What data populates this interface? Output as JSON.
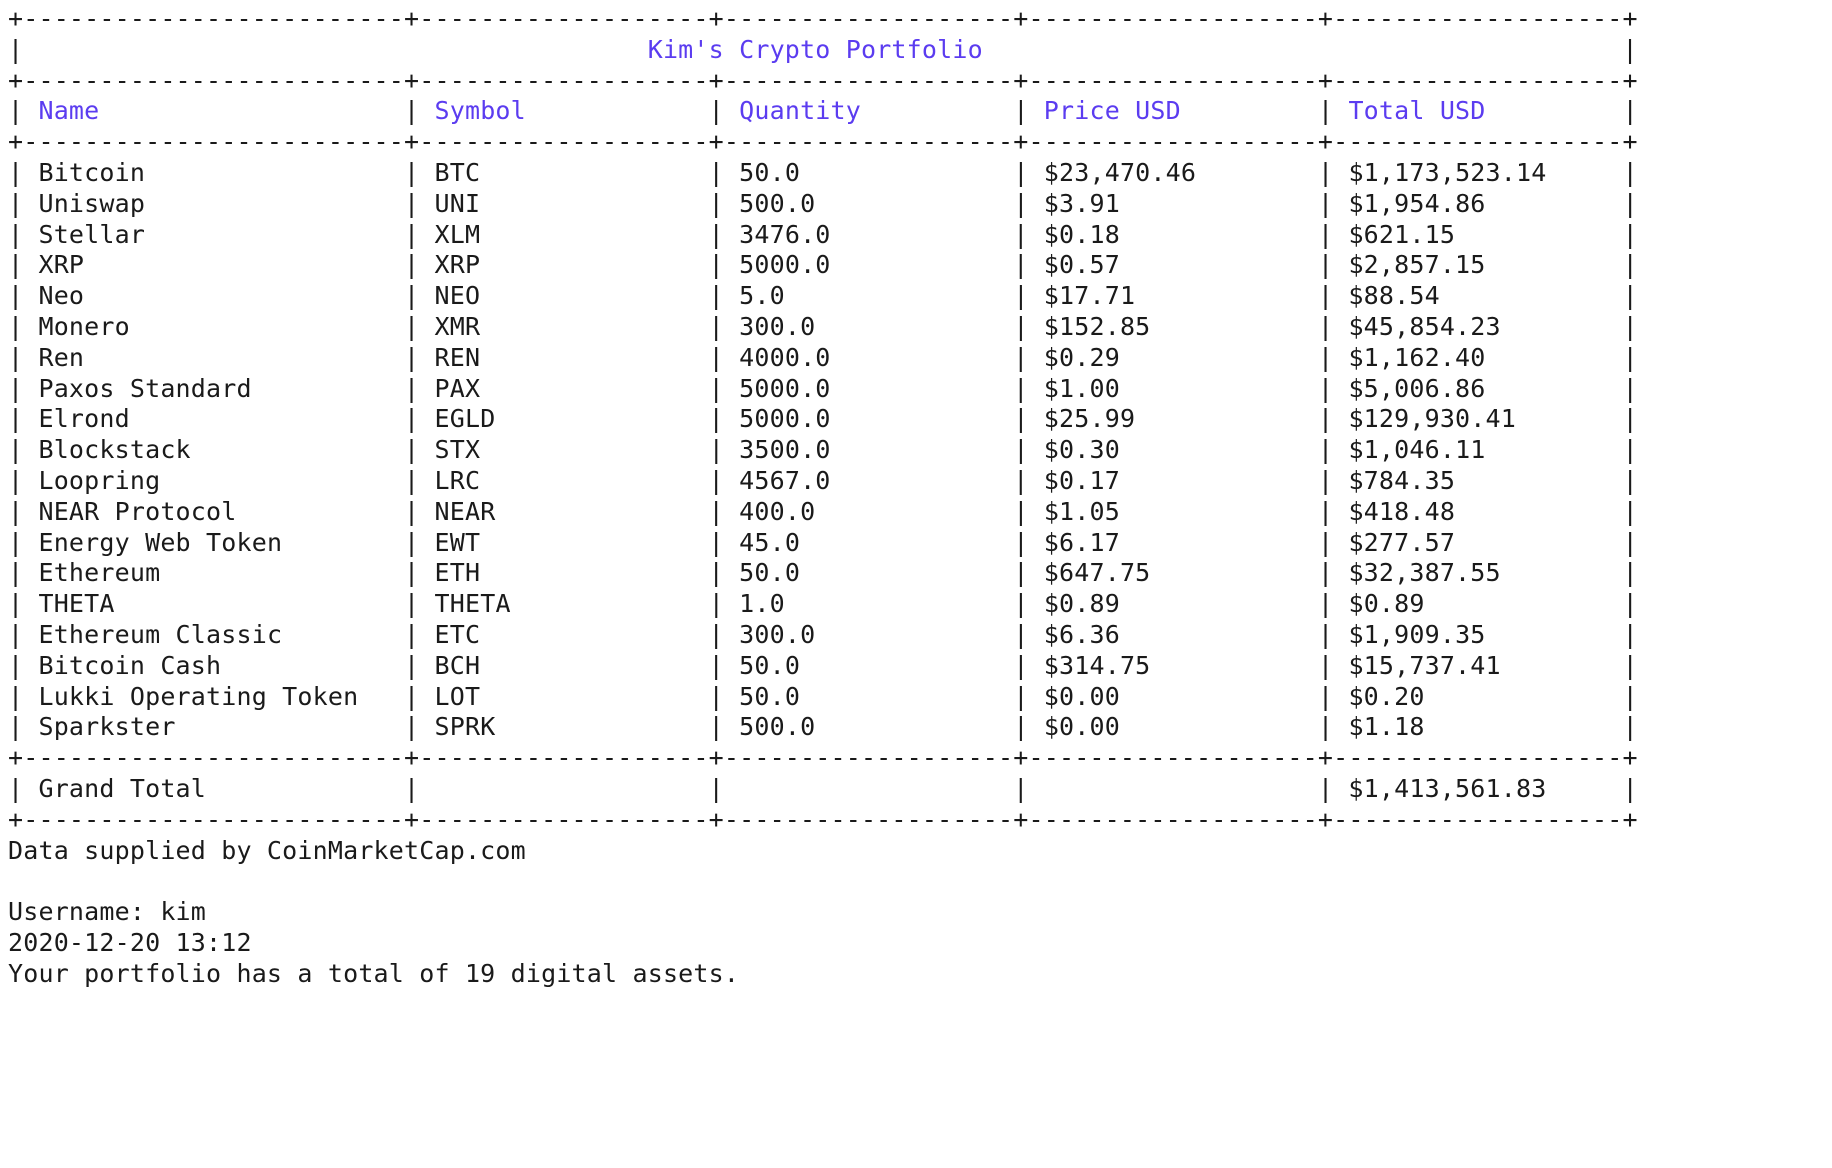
{
  "title": "Kim's Crypto Portfolio",
  "columns": [
    "Name",
    "Symbol",
    "Quantity",
    "Price USD",
    "Total USD"
  ],
  "rows": [
    [
      "Bitcoin",
      "BTC",
      "50.0",
      "$23,470.46",
      "$1,173,523.14"
    ],
    [
      "Uniswap",
      "UNI",
      "500.0",
      "$3.91",
      "$1,954.86"
    ],
    [
      "Stellar",
      "XLM",
      "3476.0",
      "$0.18",
      "$621.15"
    ],
    [
      "XRP",
      "XRP",
      "5000.0",
      "$0.57",
      "$2,857.15"
    ],
    [
      "Neo",
      "NEO",
      "5.0",
      "$17.71",
      "$88.54"
    ],
    [
      "Monero",
      "XMR",
      "300.0",
      "$152.85",
      "$45,854.23"
    ],
    [
      "Ren",
      "REN",
      "4000.0",
      "$0.29",
      "$1,162.40"
    ],
    [
      "Paxos Standard",
      "PAX",
      "5000.0",
      "$1.00",
      "$5,006.86"
    ],
    [
      "Elrond",
      "EGLD",
      "5000.0",
      "$25.99",
      "$129,930.41"
    ],
    [
      "Blockstack",
      "STX",
      "3500.0",
      "$0.30",
      "$1,046.11"
    ],
    [
      "Loopring",
      "LRC",
      "4567.0",
      "$0.17",
      "$784.35"
    ],
    [
      "NEAR Protocol",
      "NEAR",
      "400.0",
      "$1.05",
      "$418.48"
    ],
    [
      "Energy Web Token",
      "EWT",
      "45.0",
      "$6.17",
      "$277.57"
    ],
    [
      "Ethereum",
      "ETH",
      "50.0",
      "$647.75",
      "$32,387.55"
    ],
    [
      "THETA",
      "THETA",
      "1.0",
      "$0.89",
      "$0.89"
    ],
    [
      "Ethereum Classic",
      "ETC",
      "300.0",
      "$6.36",
      "$1,909.35"
    ],
    [
      "Bitcoin Cash",
      "BCH",
      "50.0",
      "$314.75",
      "$15,737.41"
    ],
    [
      "Lukki Operating Token",
      "LOT",
      "50.0",
      "$0.00",
      "$0.20"
    ],
    [
      "Sparkster",
      "SPRK",
      "500.0",
      "$0.00",
      "$1.18"
    ]
  ],
  "grand_total": {
    "label": "Grand Total",
    "total": "$1,413,561.83"
  },
  "footer": {
    "data_source": "Data supplied by CoinMarketCap.com",
    "username_line": "Username: kim",
    "timestamp": "2020-12-20 13:12",
    "summary": "Your portfolio has a total of 19 digital assets."
  },
  "colors": {
    "text": "#1a1a1a",
    "highlight": "#5b3cf0",
    "background": "#ffffff"
  }
}
